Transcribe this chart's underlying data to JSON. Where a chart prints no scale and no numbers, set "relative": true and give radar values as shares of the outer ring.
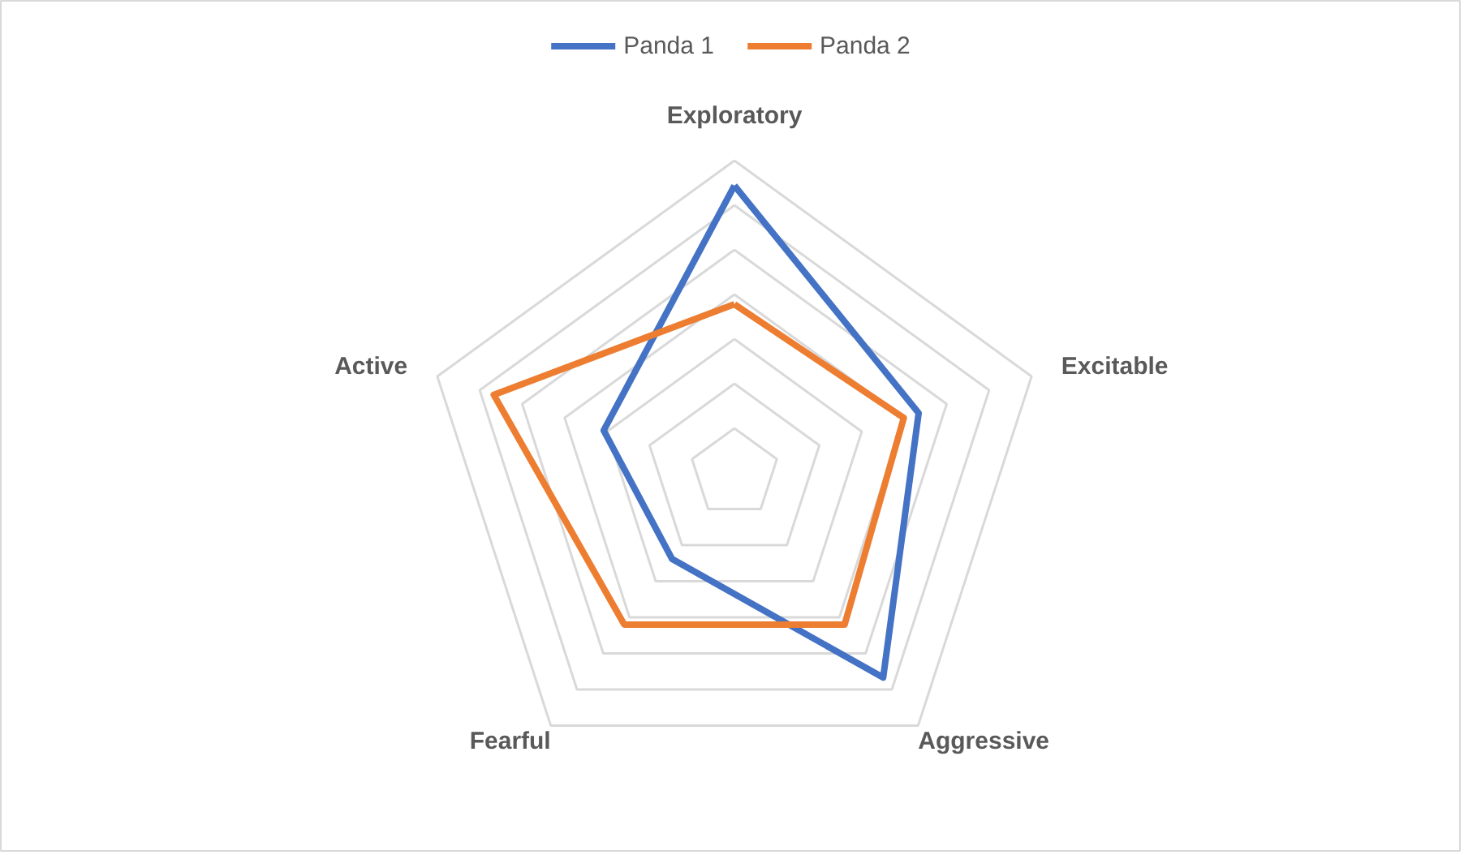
{
  "chart_data": {
    "type": "radar",
    "relative": true,
    "categories": [
      "Exploratory",
      "Excitable",
      "Aggressive",
      "Fearful",
      "Active"
    ],
    "series": [
      {
        "name": "Panda 1",
        "color": "#4472c4",
        "values": [
          0.92,
          0.62,
          0.81,
          0.34,
          0.44
        ]
      },
      {
        "name": "Panda 2",
        "color": "#ed7d31",
        "values": [
          0.54,
          0.57,
          0.6,
          0.6,
          0.81
        ]
      }
    ],
    "grid": true,
    "legend": "top",
    "marker": "none",
    "line_style": "solid"
  }
}
